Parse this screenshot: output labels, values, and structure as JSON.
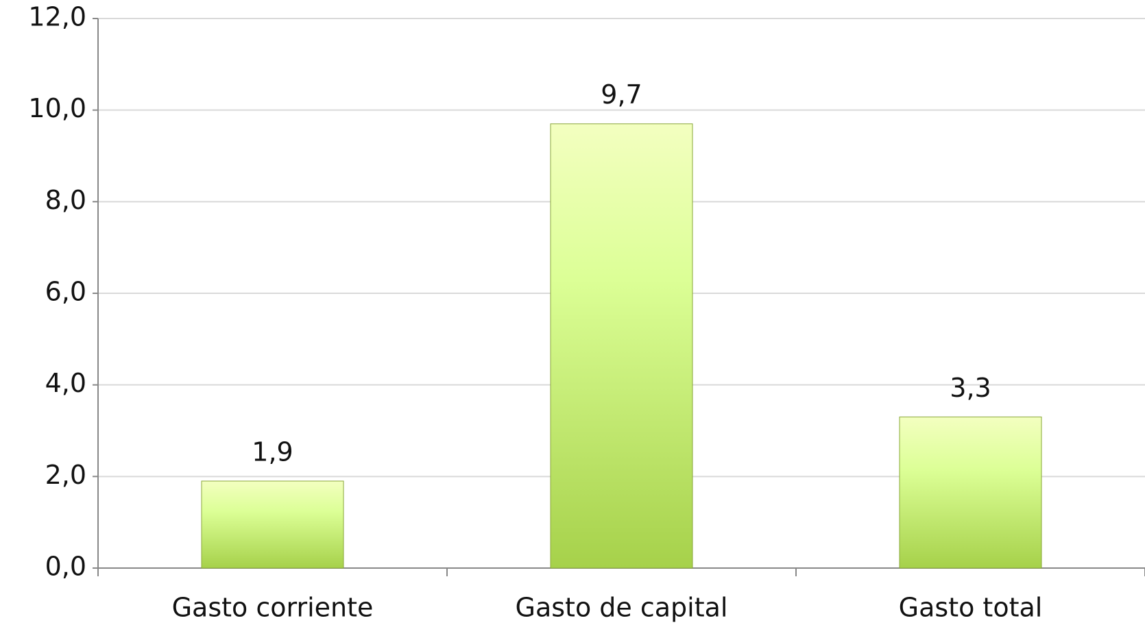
{
  "chart_data": {
    "type": "bar",
    "categories": [
      "Gasto corriente",
      "Gasto de capital",
      "Gasto total"
    ],
    "values": [
      1.9,
      9.7,
      3.3
    ],
    "value_labels": [
      "1,9",
      "9,7",
      "3,3"
    ],
    "color": "#a6d14a",
    "ylim": [
      0,
      12
    ],
    "yticks": [
      {
        "value": 0,
        "label": "0,0"
      },
      {
        "value": 2,
        "label": "2,0"
      },
      {
        "value": 4,
        "label": "4,0"
      },
      {
        "value": 6,
        "label": "6,0"
      },
      {
        "value": 8,
        "label": "8,0"
      },
      {
        "value": 10,
        "label": "10,0"
      },
      {
        "value": 12,
        "label": "12,0"
      }
    ],
    "grid": true
  }
}
